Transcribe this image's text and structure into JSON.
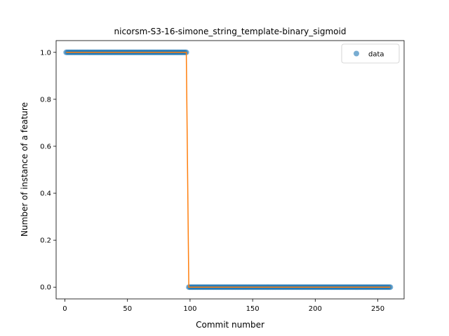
{
  "chart_data": {
    "type": "scatter",
    "title": "nicorsm-S3-16-simone_string_template-binary_sigmoid",
    "xlabel": "Commit number",
    "ylabel": "Number of instance of a feature",
    "xlim": [
      -7,
      271
    ],
    "ylim": [
      -0.05,
      1.05
    ],
    "x_ticks": [
      0,
      50,
      100,
      150,
      200,
      250
    ],
    "y_ticks": [
      0.0,
      0.2,
      0.4,
      0.6,
      0.8,
      1.0
    ],
    "x_tick_labels": [
      "0",
      "50",
      "100",
      "150",
      "200",
      "250"
    ],
    "y_tick_labels": [
      "0.0",
      "0.2",
      "0.4",
      "0.6",
      "0.8",
      "1.0"
    ],
    "legend": {
      "placement": "top-right",
      "entries": [
        "data"
      ]
    },
    "grid": false,
    "series": [
      {
        "name": "data",
        "kind": "scatter",
        "color": "#1f77b4",
        "segments": [
          {
            "x_start": 1,
            "x_end": 97,
            "y": 1
          },
          {
            "x_start": 99,
            "x_end": 260,
            "y": 0
          }
        ]
      },
      {
        "kind": "line",
        "color": "#ff7f0e",
        "x": [
          1,
          97,
          99,
          260
        ],
        "y": [
          1,
          1,
          0,
          0
        ]
      }
    ]
  }
}
